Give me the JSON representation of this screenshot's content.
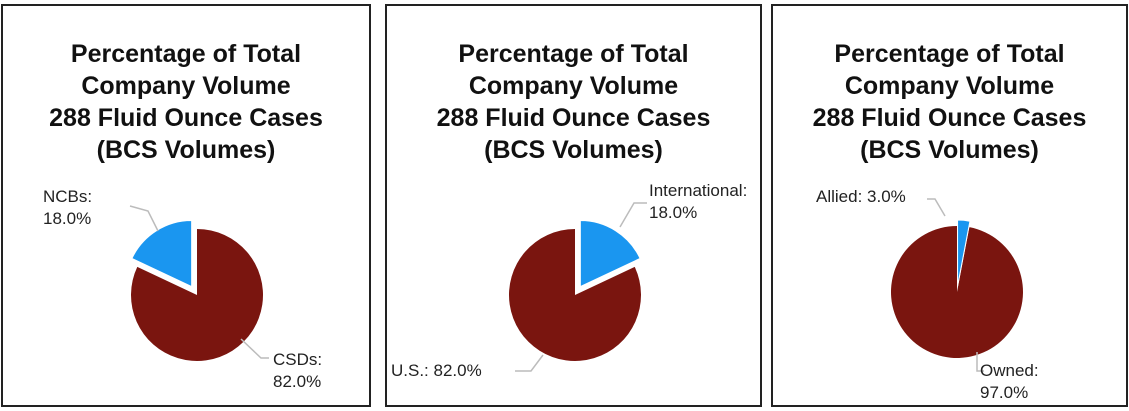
{
  "colors": {
    "major_slice": "#7a150f",
    "minor_slice": "#1a96f0",
    "leader_line": "#bcbcbc"
  },
  "chart_data": [
    {
      "type": "pie",
      "title_lines": [
        "Percentage of Total",
        "Company Volume",
        "288 Fluid Ounce Cases",
        "(BCS Volumes)"
      ],
      "slices": [
        {
          "name": "CSDs",
          "value": 82.0,
          "label": "CSDs:",
          "value_label": "82.0%",
          "color": "#7a150f",
          "exploded": false
        },
        {
          "name": "NCBs",
          "value": 18.0,
          "label": "NCBs:",
          "value_label": "18.0%",
          "color": "#1a96f0",
          "exploded": true
        }
      ]
    },
    {
      "type": "pie",
      "title_lines": [
        "Percentage of Total",
        "Company Volume",
        "288 Fluid Ounce Cases",
        "(BCS Volumes)"
      ],
      "slices": [
        {
          "name": "U.S.",
          "value": 82.0,
          "label": "U.S.: 82.0%",
          "value_label": "",
          "color": "#7a150f",
          "exploded": false
        },
        {
          "name": "International",
          "value": 18.0,
          "label": "International:",
          "value_label": "18.0%",
          "color": "#1a96f0",
          "exploded": true
        }
      ]
    },
    {
      "type": "pie",
      "title_lines": [
        "Percentage of Total",
        "Company Volume",
        "288 Fluid Ounce Cases",
        "(BCS Volumes)"
      ],
      "slices": [
        {
          "name": "Owned",
          "value": 97.0,
          "label": "Owned:",
          "value_label": "97.0%",
          "color": "#7a150f",
          "exploded": false
        },
        {
          "name": "Allied",
          "value": 3.0,
          "label": "Allied: 3.0%",
          "value_label": "",
          "color": "#1a96f0",
          "exploded": true
        }
      ]
    }
  ]
}
